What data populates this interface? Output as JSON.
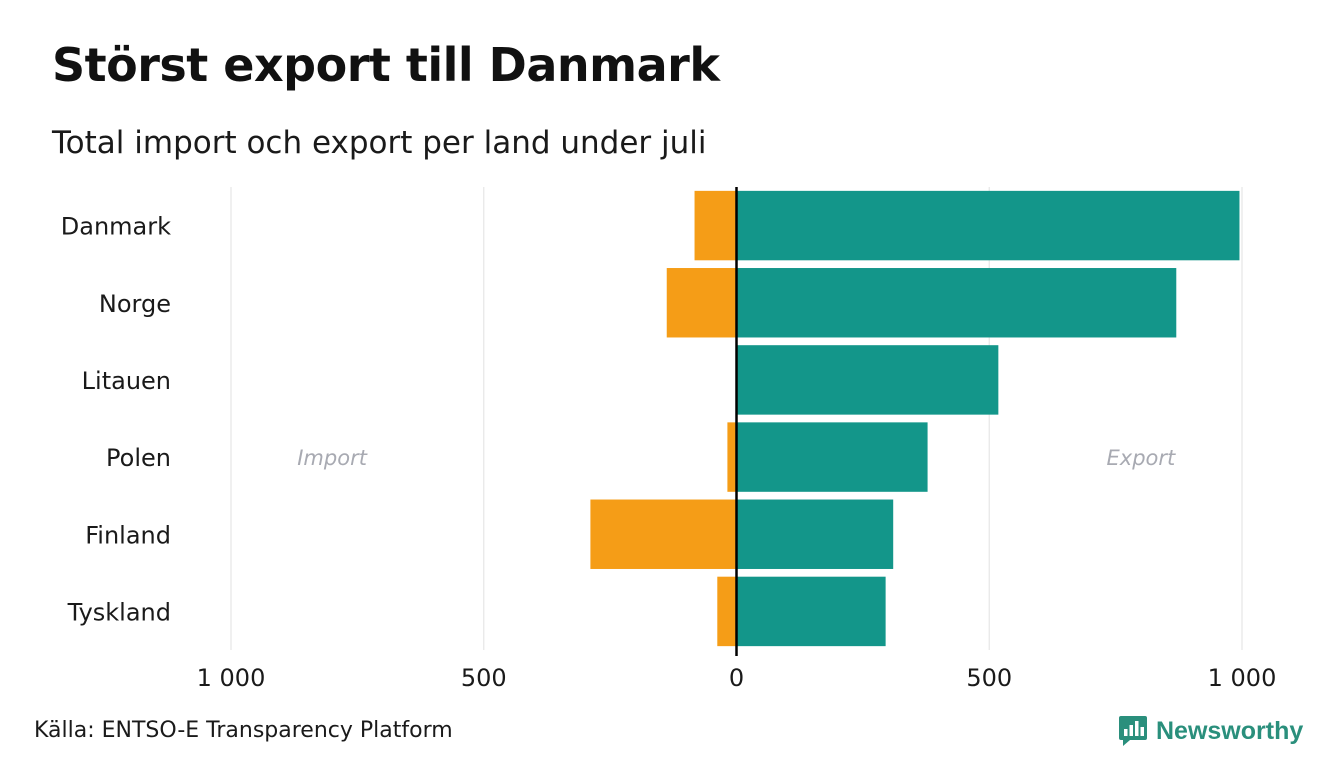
{
  "title": "Störst export till Danmark",
  "subtitle": "Total import och export per land under juli",
  "source": "Källa: ENTSO-E Transparency Platform",
  "brand": "Newsworthy",
  "colors": {
    "import": "#F59D17",
    "export": "#13968A",
    "grid": "#e6e6e6",
    "zero_line": "#000000",
    "annotation": "#a8aab2",
    "brand": "#2a8f7c"
  },
  "chart_data": {
    "type": "bar",
    "orientation": "horizontal",
    "categories": [
      "Danmark",
      "Norge",
      "Litauen",
      "Polen",
      "Finland",
      "Tyskland"
    ],
    "series": [
      {
        "name": "Import",
        "values": [
          -83,
          -138,
          0,
          -18,
          -289,
          -38
        ]
      },
      {
        "name": "Export",
        "values": [
          995,
          870,
          518,
          378,
          310,
          295
        ]
      }
    ],
    "xlim": [
      -1000,
      1000
    ],
    "xticks": [
      -1000,
      -500,
      0,
      500,
      1000
    ],
    "xtick_labels": [
      "1 000",
      "500",
      "0",
      "500",
      "1 000"
    ],
    "annotations": [
      {
        "text": "Import",
        "x": -800
      },
      {
        "text": "Export",
        "x": 800
      }
    ],
    "grid": true
  }
}
